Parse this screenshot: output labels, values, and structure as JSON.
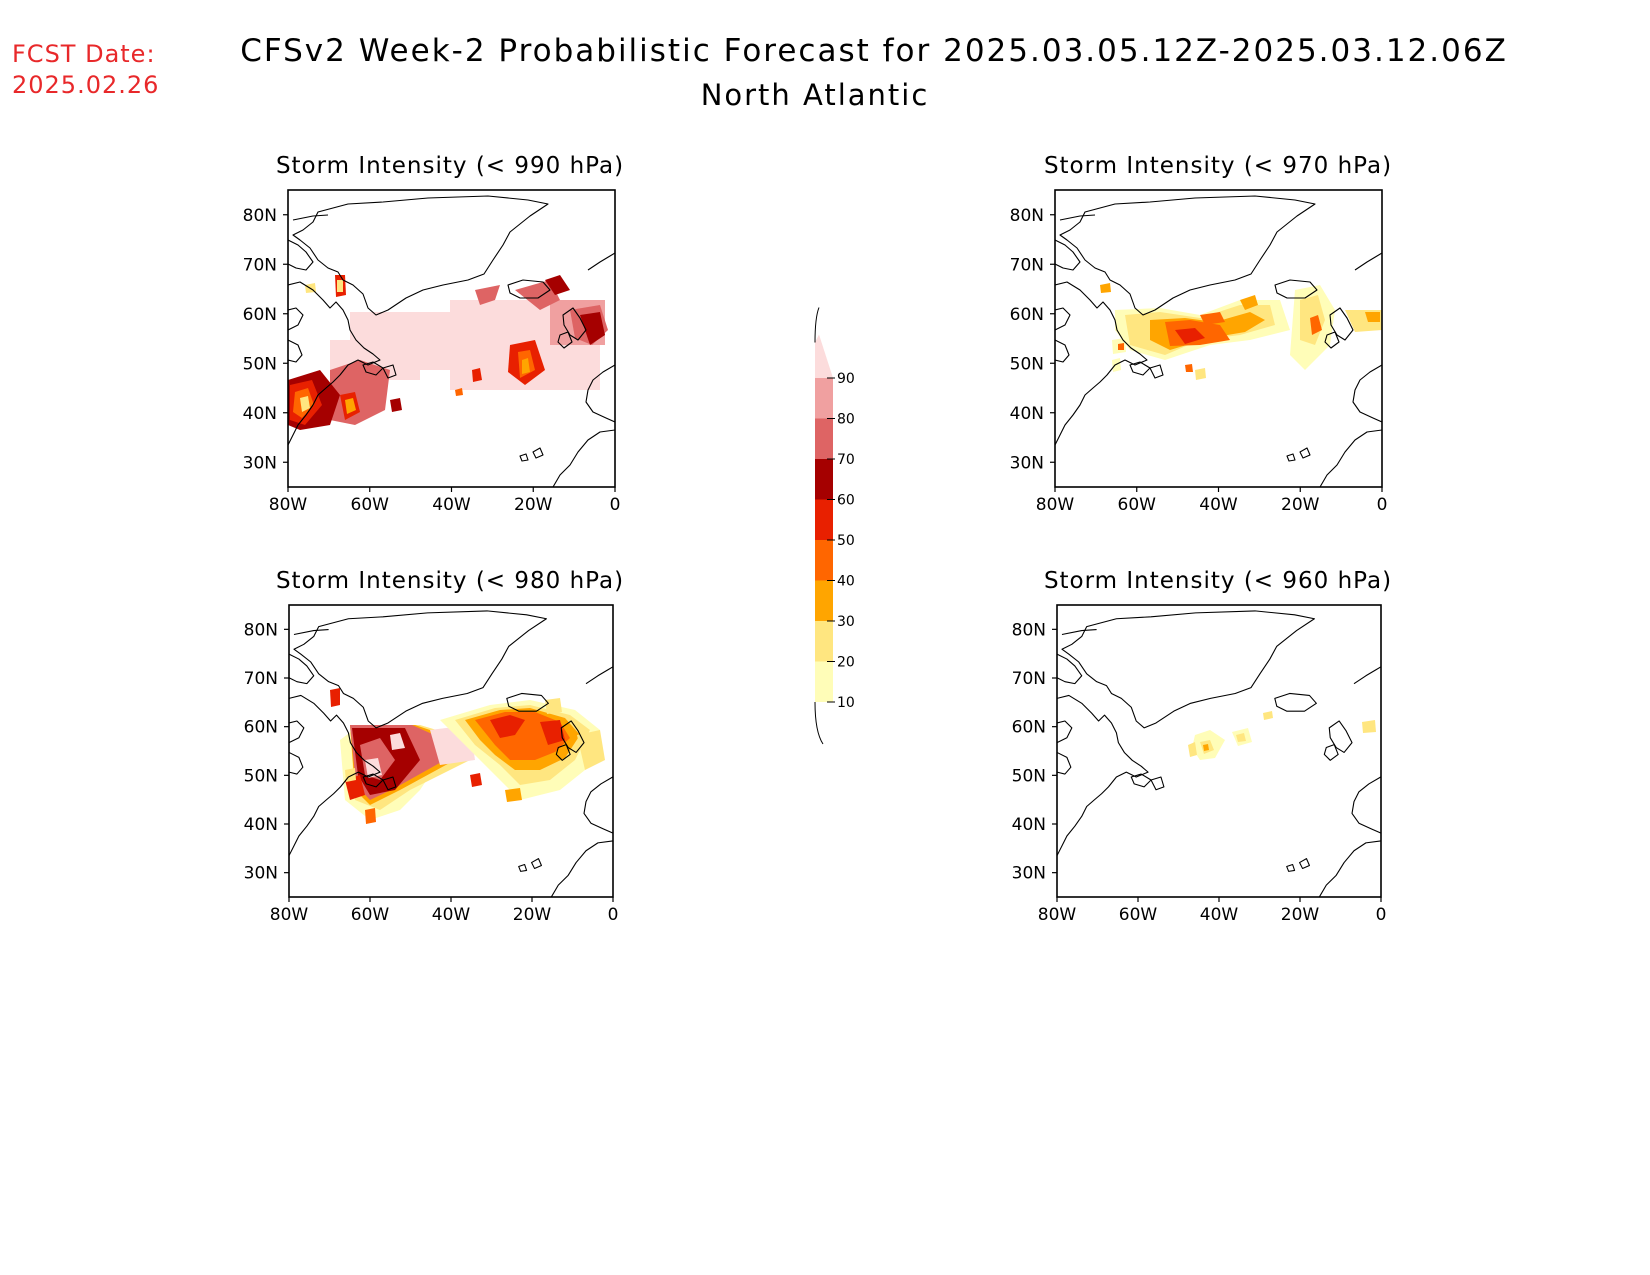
{
  "header": {
    "fcst_label": "FCST Date:",
    "fcst_date": "2025.02.26",
    "title": "CFSv2 Week-2 Probabilistic Forecast for 2025.03.05.12Z-2025.03.12.06Z",
    "subtitle": "North Atlantic"
  },
  "axes": {
    "lon_ticks": [
      "80W",
      "60W",
      "40W",
      "20W",
      "0"
    ],
    "lat_ticks": [
      "80N",
      "70N",
      "60N",
      "50N",
      "40N",
      "30N"
    ],
    "lon_range": [
      -80,
      0
    ],
    "lat_range": [
      25,
      85
    ]
  },
  "colorbar": {
    "levels": [
      "10",
      "20",
      "30",
      "40",
      "50",
      "60",
      "70",
      "80",
      "90"
    ],
    "colors": [
      "#fffdb8",
      "#ffe680",
      "#ffa500",
      "#ff6600",
      "#e82000",
      "#a50000",
      "#de6464",
      "#f0a0a0",
      "#fcdcdc"
    ]
  },
  "panels": [
    {
      "id": "p990",
      "title": "Storm Intensity (< 990 hPa)"
    },
    {
      "id": "p970",
      "title": "Storm Intensity (< 970 hPa)"
    },
    {
      "id": "p980",
      "title": "Storm Intensity (< 980 hPa)"
    },
    {
      "id": "p960",
      "title": "Storm Intensity (< 960 hPa)"
    }
  ]
}
